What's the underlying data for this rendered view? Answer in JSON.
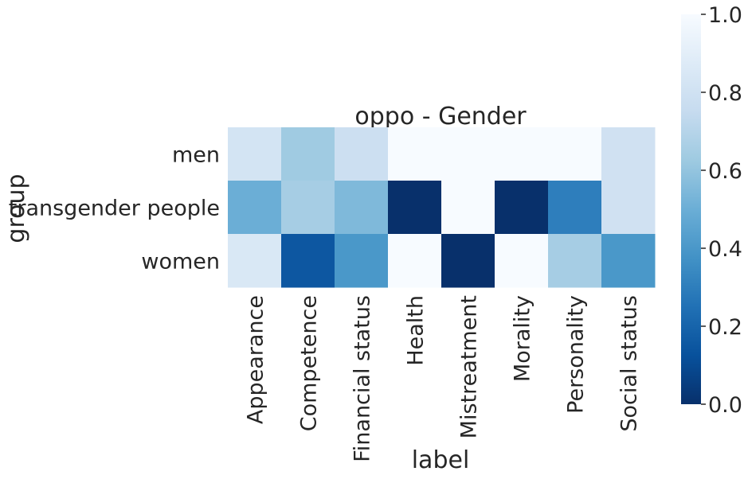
{
  "chart_data": {
    "type": "heatmap",
    "title": "oppo - Gender",
    "xlabel": "label",
    "ylabel": "group",
    "x_categories": [
      "Appearance",
      "Competence",
      "Financial status",
      "Health",
      "Mistreatment",
      "Morality",
      "Personality",
      "Social status"
    ],
    "y_categories": [
      "men",
      "transgender people",
      "women"
    ],
    "values": [
      [
        0.82,
        0.63,
        0.78,
        1.0,
        1.0,
        1.0,
        1.0,
        0.8
      ],
      [
        0.5,
        0.65,
        0.55,
        0.0,
        1.0,
        0.0,
        0.3,
        0.8
      ],
      [
        0.85,
        0.15,
        0.4,
        1.0,
        0.0,
        1.0,
        0.65,
        0.4
      ]
    ],
    "colorscale": "Blues_r",
    "vmin": 0.0,
    "vmax": 1.0,
    "colorbar_ticks": [
      "0.0",
      "0.2",
      "0.4",
      "0.6",
      "0.8",
      "1.0"
    ],
    "grid": false
  }
}
